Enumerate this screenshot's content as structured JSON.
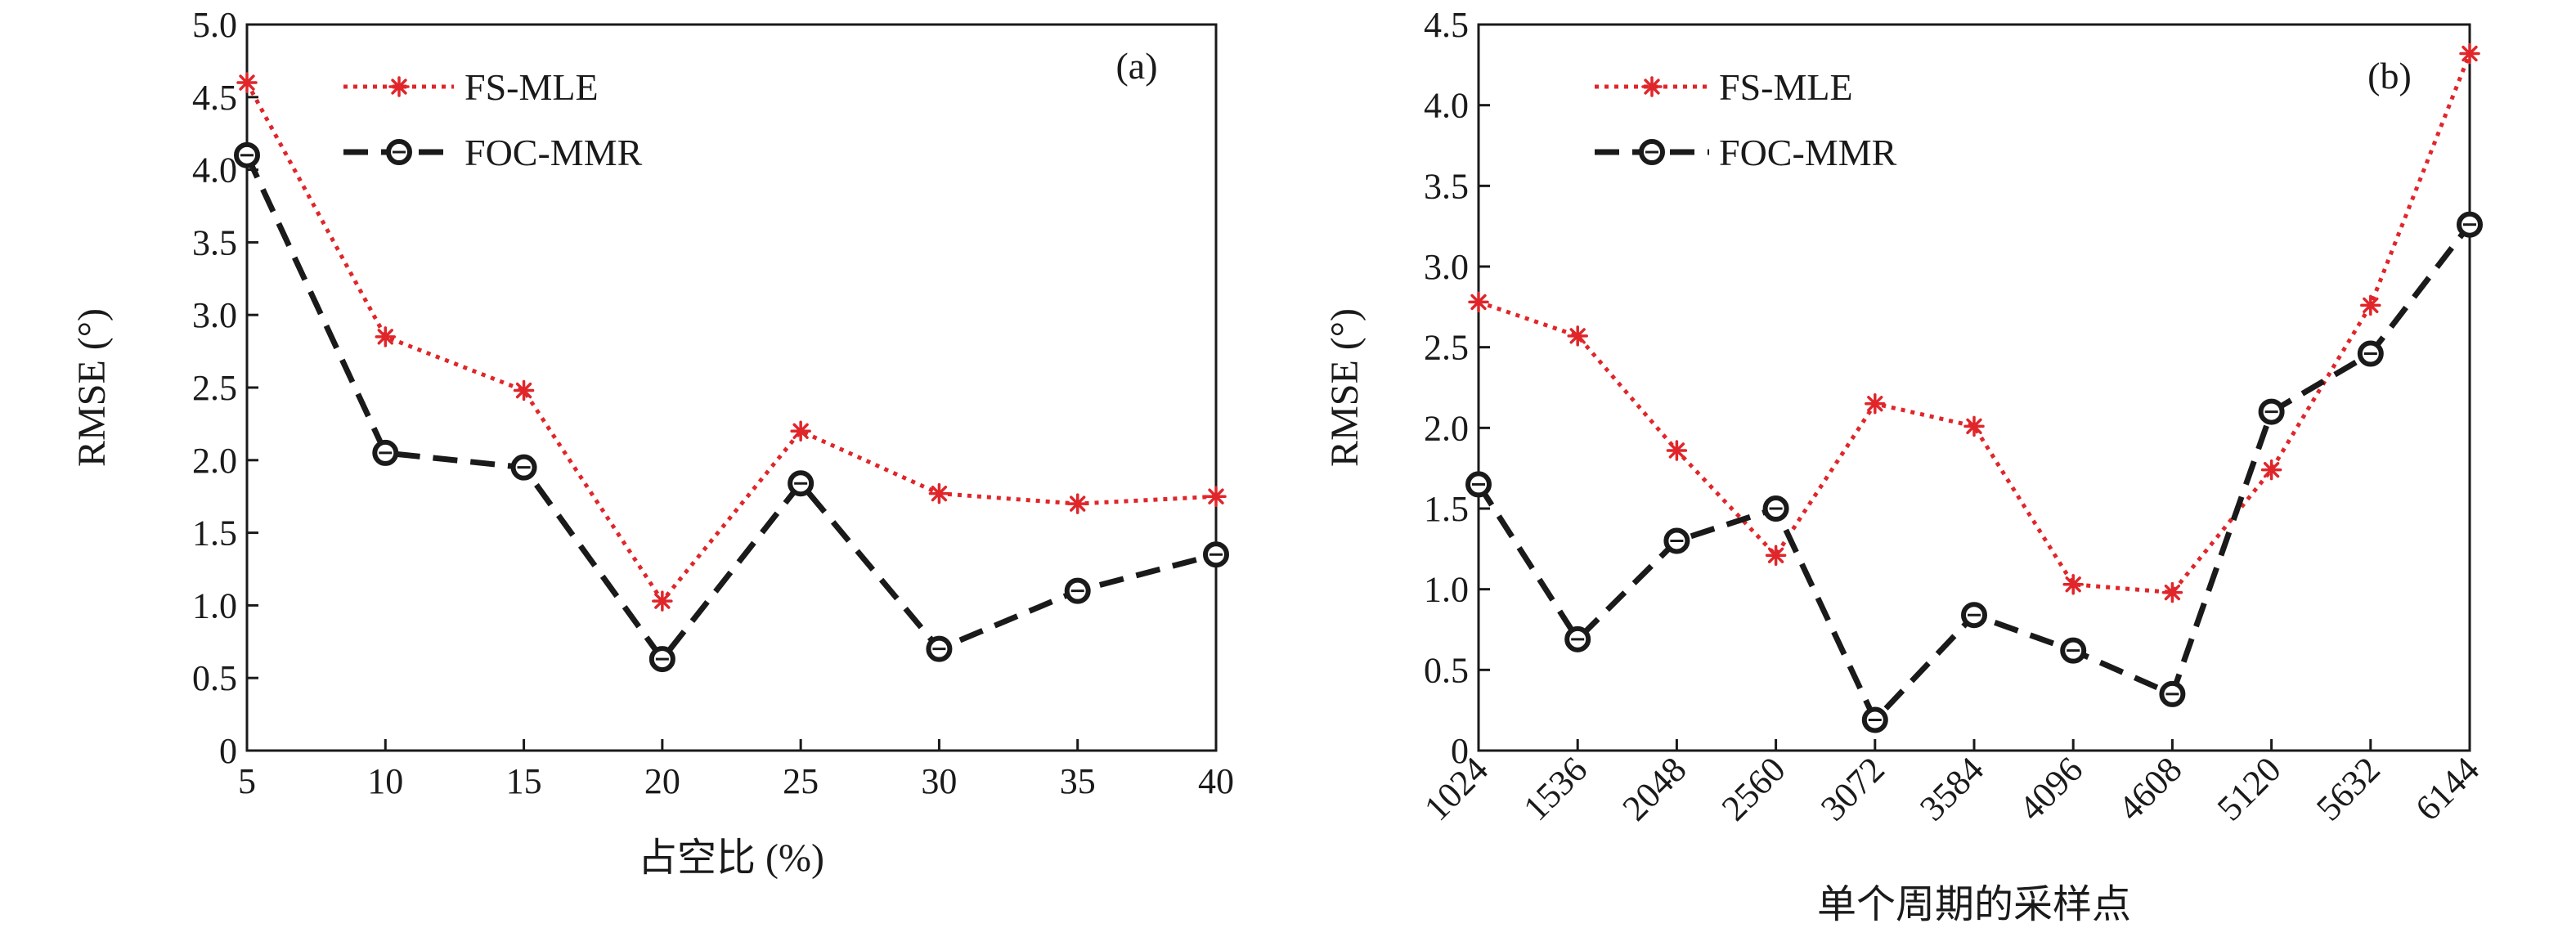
{
  "chart_data": [
    {
      "type": "line",
      "panel_label": "(a)",
      "xlabel": "占空比 (%)",
      "ylabel": "RMSE (°)",
      "x": [
        5,
        10,
        15,
        20,
        25,
        30,
        35,
        40
      ],
      "x_tick_labels": [
        "5",
        "10",
        "15",
        "20",
        "25",
        "30",
        "35",
        "40"
      ],
      "xlim": [
        5,
        40
      ],
      "ylim": [
        0,
        5
      ],
      "y_tick_labels": [
        "0",
        "0.5",
        "1.0",
        "1.5",
        "2.0",
        "2.5",
        "3.0",
        "3.5",
        "4.0",
        "4.5",
        "5.0"
      ],
      "grid": false,
      "legend_position": "top-left",
      "series": [
        {
          "name": "FS-MLE",
          "color": "#e0262a",
          "marker": "asterisk",
          "line_style": "dotted",
          "values": [
            4.6,
            2.85,
            2.48,
            1.03,
            2.2,
            1.77,
            1.7,
            1.75
          ]
        },
        {
          "name": "FOC-MMR",
          "color": "#1a1a1a",
          "marker": "circle",
          "line_style": "dashed",
          "values": [
            4.1,
            2.05,
            1.95,
            0.63,
            1.84,
            0.7,
            1.1,
            1.35
          ]
        }
      ]
    },
    {
      "type": "line",
      "panel_label": "(b)",
      "xlabel": "单个周期的采样点",
      "ylabel": "RMSE (°)",
      "x": [
        1024,
        1536,
        2048,
        2560,
        3072,
        3584,
        4096,
        4608,
        5120,
        5632,
        6144
      ],
      "x_tick_labels": [
        "1024",
        "1536",
        "2048",
        "2560",
        "3072",
        "3584",
        "4096",
        "4608",
        "5120",
        "5632",
        "6144"
      ],
      "xlim": [
        1024,
        6144
      ],
      "ylim": [
        0,
        4.5
      ],
      "y_tick_labels": [
        "0",
        "0.5",
        "1.0",
        "1.5",
        "2.0",
        "2.5",
        "3.0",
        "3.5",
        "4.0",
        "4.5"
      ],
      "grid": false,
      "legend_position": "top-left",
      "series": [
        {
          "name": "FS-MLE",
          "color": "#e0262a",
          "marker": "asterisk",
          "line_style": "dotted",
          "values": [
            2.78,
            2.57,
            1.86,
            1.21,
            2.15,
            2.01,
            1.03,
            0.98,
            1.74,
            2.76,
            4.32
          ]
        },
        {
          "name": "FOC-MMR",
          "color": "#1a1a1a",
          "marker": "circle",
          "line_style": "dashed",
          "values": [
            1.65,
            0.69,
            1.3,
            1.5,
            0.19,
            0.84,
            0.62,
            0.35,
            2.1,
            2.46,
            3.26
          ]
        }
      ]
    }
  ]
}
